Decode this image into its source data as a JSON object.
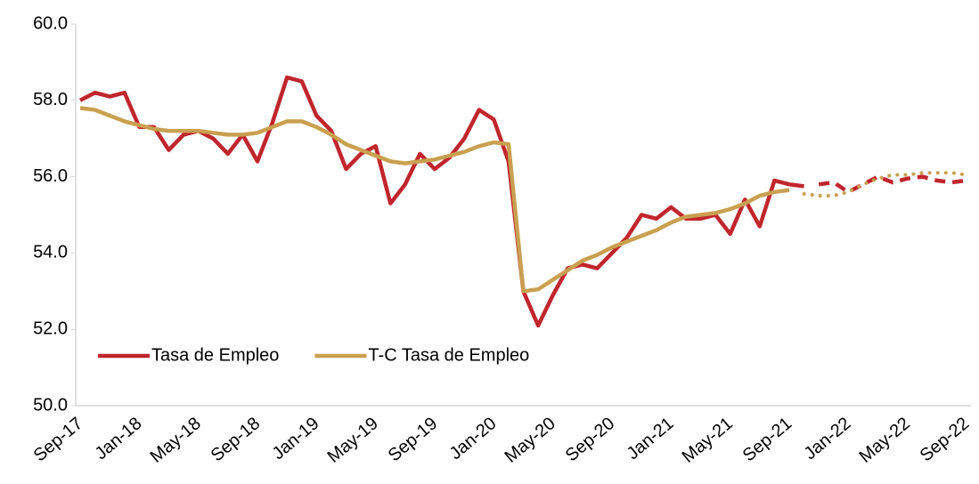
{
  "chart_data": {
    "type": "line",
    "categories": [
      "Sep-17",
      null,
      null,
      null,
      "Jan-18",
      null,
      null,
      null,
      "May-18",
      null,
      null,
      null,
      "Sep-18",
      null,
      null,
      null,
      "Jan-19",
      null,
      null,
      null,
      "May-19",
      null,
      null,
      null,
      "Sep-19",
      null,
      null,
      null,
      "Jan-20",
      null,
      null,
      null,
      "May-20",
      null,
      null,
      null,
      "Sep-20",
      null,
      null,
      null,
      "Jan-21",
      null,
      null,
      null,
      "May-21",
      null,
      null,
      null,
      "Sep-21",
      null,
      null,
      null,
      "Jan-22",
      null,
      null,
      null,
      "May-22",
      null,
      null,
      null,
      "Sep-22"
    ],
    "series": [
      {
        "name": "Tasa de Empleo",
        "color": "#c0262d",
        "dashed_from": 49,
        "dash_style": "dashed",
        "values": [
          58.0,
          58.2,
          58.1,
          58.2,
          57.3,
          57.3,
          56.7,
          57.1,
          57.2,
          57.0,
          56.6,
          57.1,
          56.4,
          57.4,
          58.6,
          58.5,
          57.6,
          57.2,
          56.2,
          56.6,
          56.8,
          55.3,
          55.8,
          56.6,
          56.2,
          56.5,
          57.0,
          57.75,
          57.5,
          56.4,
          53.0,
          52.1,
          52.9,
          53.6,
          53.7,
          53.6,
          54.0,
          54.4,
          55.0,
          54.9,
          55.2,
          54.9,
          54.9,
          55.0,
          54.5,
          55.4,
          54.7,
          55.9,
          55.8,
          55.75,
          55.8,
          55.85,
          55.6,
          55.8,
          56.0,
          55.85,
          55.95,
          56.0,
          55.9,
          55.85,
          55.9
        ]
      },
      {
        "name": "T-C Tasa de Empleo",
        "color": "#c9a050",
        "dashed_from": 48,
        "dash_style": "dotted",
        "values": [
          57.8,
          57.75,
          57.6,
          57.45,
          57.35,
          57.25,
          57.2,
          57.2,
          57.2,
          57.15,
          57.1,
          57.1,
          57.15,
          57.3,
          57.45,
          57.45,
          57.3,
          57.1,
          56.85,
          56.7,
          56.55,
          56.4,
          56.35,
          56.4,
          56.45,
          56.55,
          56.65,
          56.8,
          56.9,
          56.85,
          53.0,
          53.05,
          53.3,
          53.55,
          53.8,
          53.95,
          54.15,
          54.3,
          54.45,
          54.6,
          54.8,
          54.95,
          55.0,
          55.05,
          55.15,
          55.3,
          55.5,
          55.6,
          55.65,
          55.55,
          55.5,
          55.5,
          55.6,
          55.8,
          55.95,
          56.05,
          56.05,
          56.1,
          56.1,
          56.1,
          56.05
        ]
      }
    ],
    "ylim": [
      50,
      60
    ],
    "yticks": [
      {
        "value": 50,
        "label": "50.0"
      },
      {
        "value": 52,
        "label": "52.0"
      },
      {
        "value": 54,
        "label": "54.0"
      },
      {
        "value": 56,
        "label": "56.0"
      },
      {
        "value": 58,
        "label": "58.0"
      },
      {
        "value": 60,
        "label": "60.0"
      }
    ],
    "grid": false,
    "legend": "lower left"
  }
}
